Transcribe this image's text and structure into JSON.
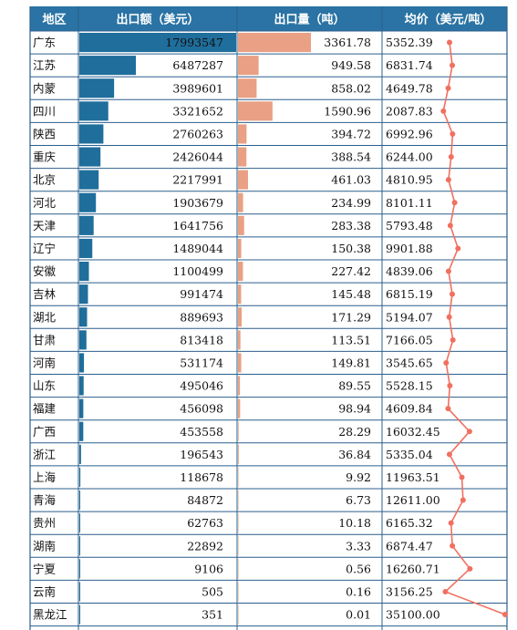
{
  "colors": {
    "header_bg": "#2A73A4",
    "export_value_bar": "#1F6E9C",
    "export_volume_bar": "#E9A084",
    "price_line": "#F07060",
    "grid": "#2B5F8C"
  },
  "chart_data": {
    "type": "table",
    "columns": [
      "地区",
      "出口额（美元）",
      "出口量（吨）",
      "均价（美元/吨）"
    ],
    "rows": [
      {
        "region": "广东",
        "export_value": "17993547",
        "export_volume": "3361.78",
        "avg_price": "5352.39"
      },
      {
        "region": "江苏",
        "export_value": "6487287",
        "export_volume": "949.58",
        "avg_price": "6831.74"
      },
      {
        "region": "内蒙",
        "export_value": "3989601",
        "export_volume": "858.02",
        "avg_price": "4649.78"
      },
      {
        "region": "四川",
        "export_value": "3321652",
        "export_volume": "1590.96",
        "avg_price": "2087.83"
      },
      {
        "region": "陕西",
        "export_value": "2760263",
        "export_volume": "394.72",
        "avg_price": "6992.96"
      },
      {
        "region": "重庆",
        "export_value": "2426044",
        "export_volume": "388.54",
        "avg_price": "6244.00"
      },
      {
        "region": "北京",
        "export_value": "2217991",
        "export_volume": "461.03",
        "avg_price": "4810.95"
      },
      {
        "region": "河北",
        "export_value": "1903679",
        "export_volume": "234.99",
        "avg_price": "8101.11"
      },
      {
        "region": "天津",
        "export_value": "1641756",
        "export_volume": "283.38",
        "avg_price": "5793.48"
      },
      {
        "region": "辽宁",
        "export_value": "1489044",
        "export_volume": "150.38",
        "avg_price": "9901.88"
      },
      {
        "region": "安徽",
        "export_value": "1100499",
        "export_volume": "227.42",
        "avg_price": "4839.06"
      },
      {
        "region": "吉林",
        "export_value": "991474",
        "export_volume": "145.48",
        "avg_price": "6815.19"
      },
      {
        "region": "湖北",
        "export_value": "889693",
        "export_volume": "171.29",
        "avg_price": "5194.07"
      },
      {
        "region": "甘肃",
        "export_value": "813418",
        "export_volume": "113.51",
        "avg_price": "7166.05"
      },
      {
        "region": "河南",
        "export_value": "531174",
        "export_volume": "149.81",
        "avg_price": "3545.65"
      },
      {
        "region": "山东",
        "export_value": "495046",
        "export_volume": "89.55",
        "avg_price": "5528.15"
      },
      {
        "region": "福建",
        "export_value": "456098",
        "export_volume": "98.94",
        "avg_price": "4609.84"
      },
      {
        "region": "广西",
        "export_value": "453558",
        "export_volume": "28.29",
        "avg_price": "16032.45"
      },
      {
        "region": "浙江",
        "export_value": "196543",
        "export_volume": "36.84",
        "avg_price": "5335.04"
      },
      {
        "region": "上海",
        "export_value": "118678",
        "export_volume": "9.92",
        "avg_price": "11963.51"
      },
      {
        "region": "青海",
        "export_value": "84872",
        "export_volume": "6.73",
        "avg_price": "12611.00"
      },
      {
        "region": "贵州",
        "export_value": "62763",
        "export_volume": "10.18",
        "avg_price": "6165.32"
      },
      {
        "region": "湖南",
        "export_value": "22892",
        "export_volume": "3.33",
        "avg_price": "6874.47"
      },
      {
        "region": "宁夏",
        "export_value": "9106",
        "export_volume": "0.56",
        "avg_price": "16260.71"
      },
      {
        "region": "云南",
        "export_value": "505",
        "export_volume": "0.16",
        "avg_price": "3156.25"
      },
      {
        "region": "黑龙江",
        "export_value": "351",
        "export_volume": "0.01",
        "avg_price": "35100.00"
      }
    ]
  }
}
